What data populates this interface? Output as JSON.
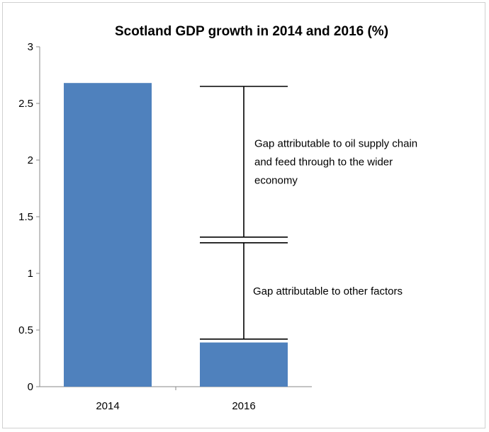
{
  "chart_data": {
    "type": "bar",
    "title": "Scotland GDP growth in 2014 and 2016 (%)",
    "xlabel": "",
    "ylabel": "",
    "ylim": [
      0,
      3
    ],
    "yticks": [
      "0",
      "0.5",
      "1",
      "1.5",
      "2",
      "2.5",
      "3"
    ],
    "categories": [
      "2014",
      "2016"
    ],
    "values": [
      2.68,
      0.39
    ],
    "grid": false,
    "bar_color": "#4F81BD",
    "annotations": [
      {
        "lines": [
          "Gap attributable to oil supply chain",
          "and feed through to the wider",
          "economy"
        ],
        "from": 1.32,
        "to": 2.65
      },
      {
        "lines": [
          "Gap attributable to other factors"
        ],
        "from": 0.42,
        "to": 1.27
      }
    ]
  }
}
